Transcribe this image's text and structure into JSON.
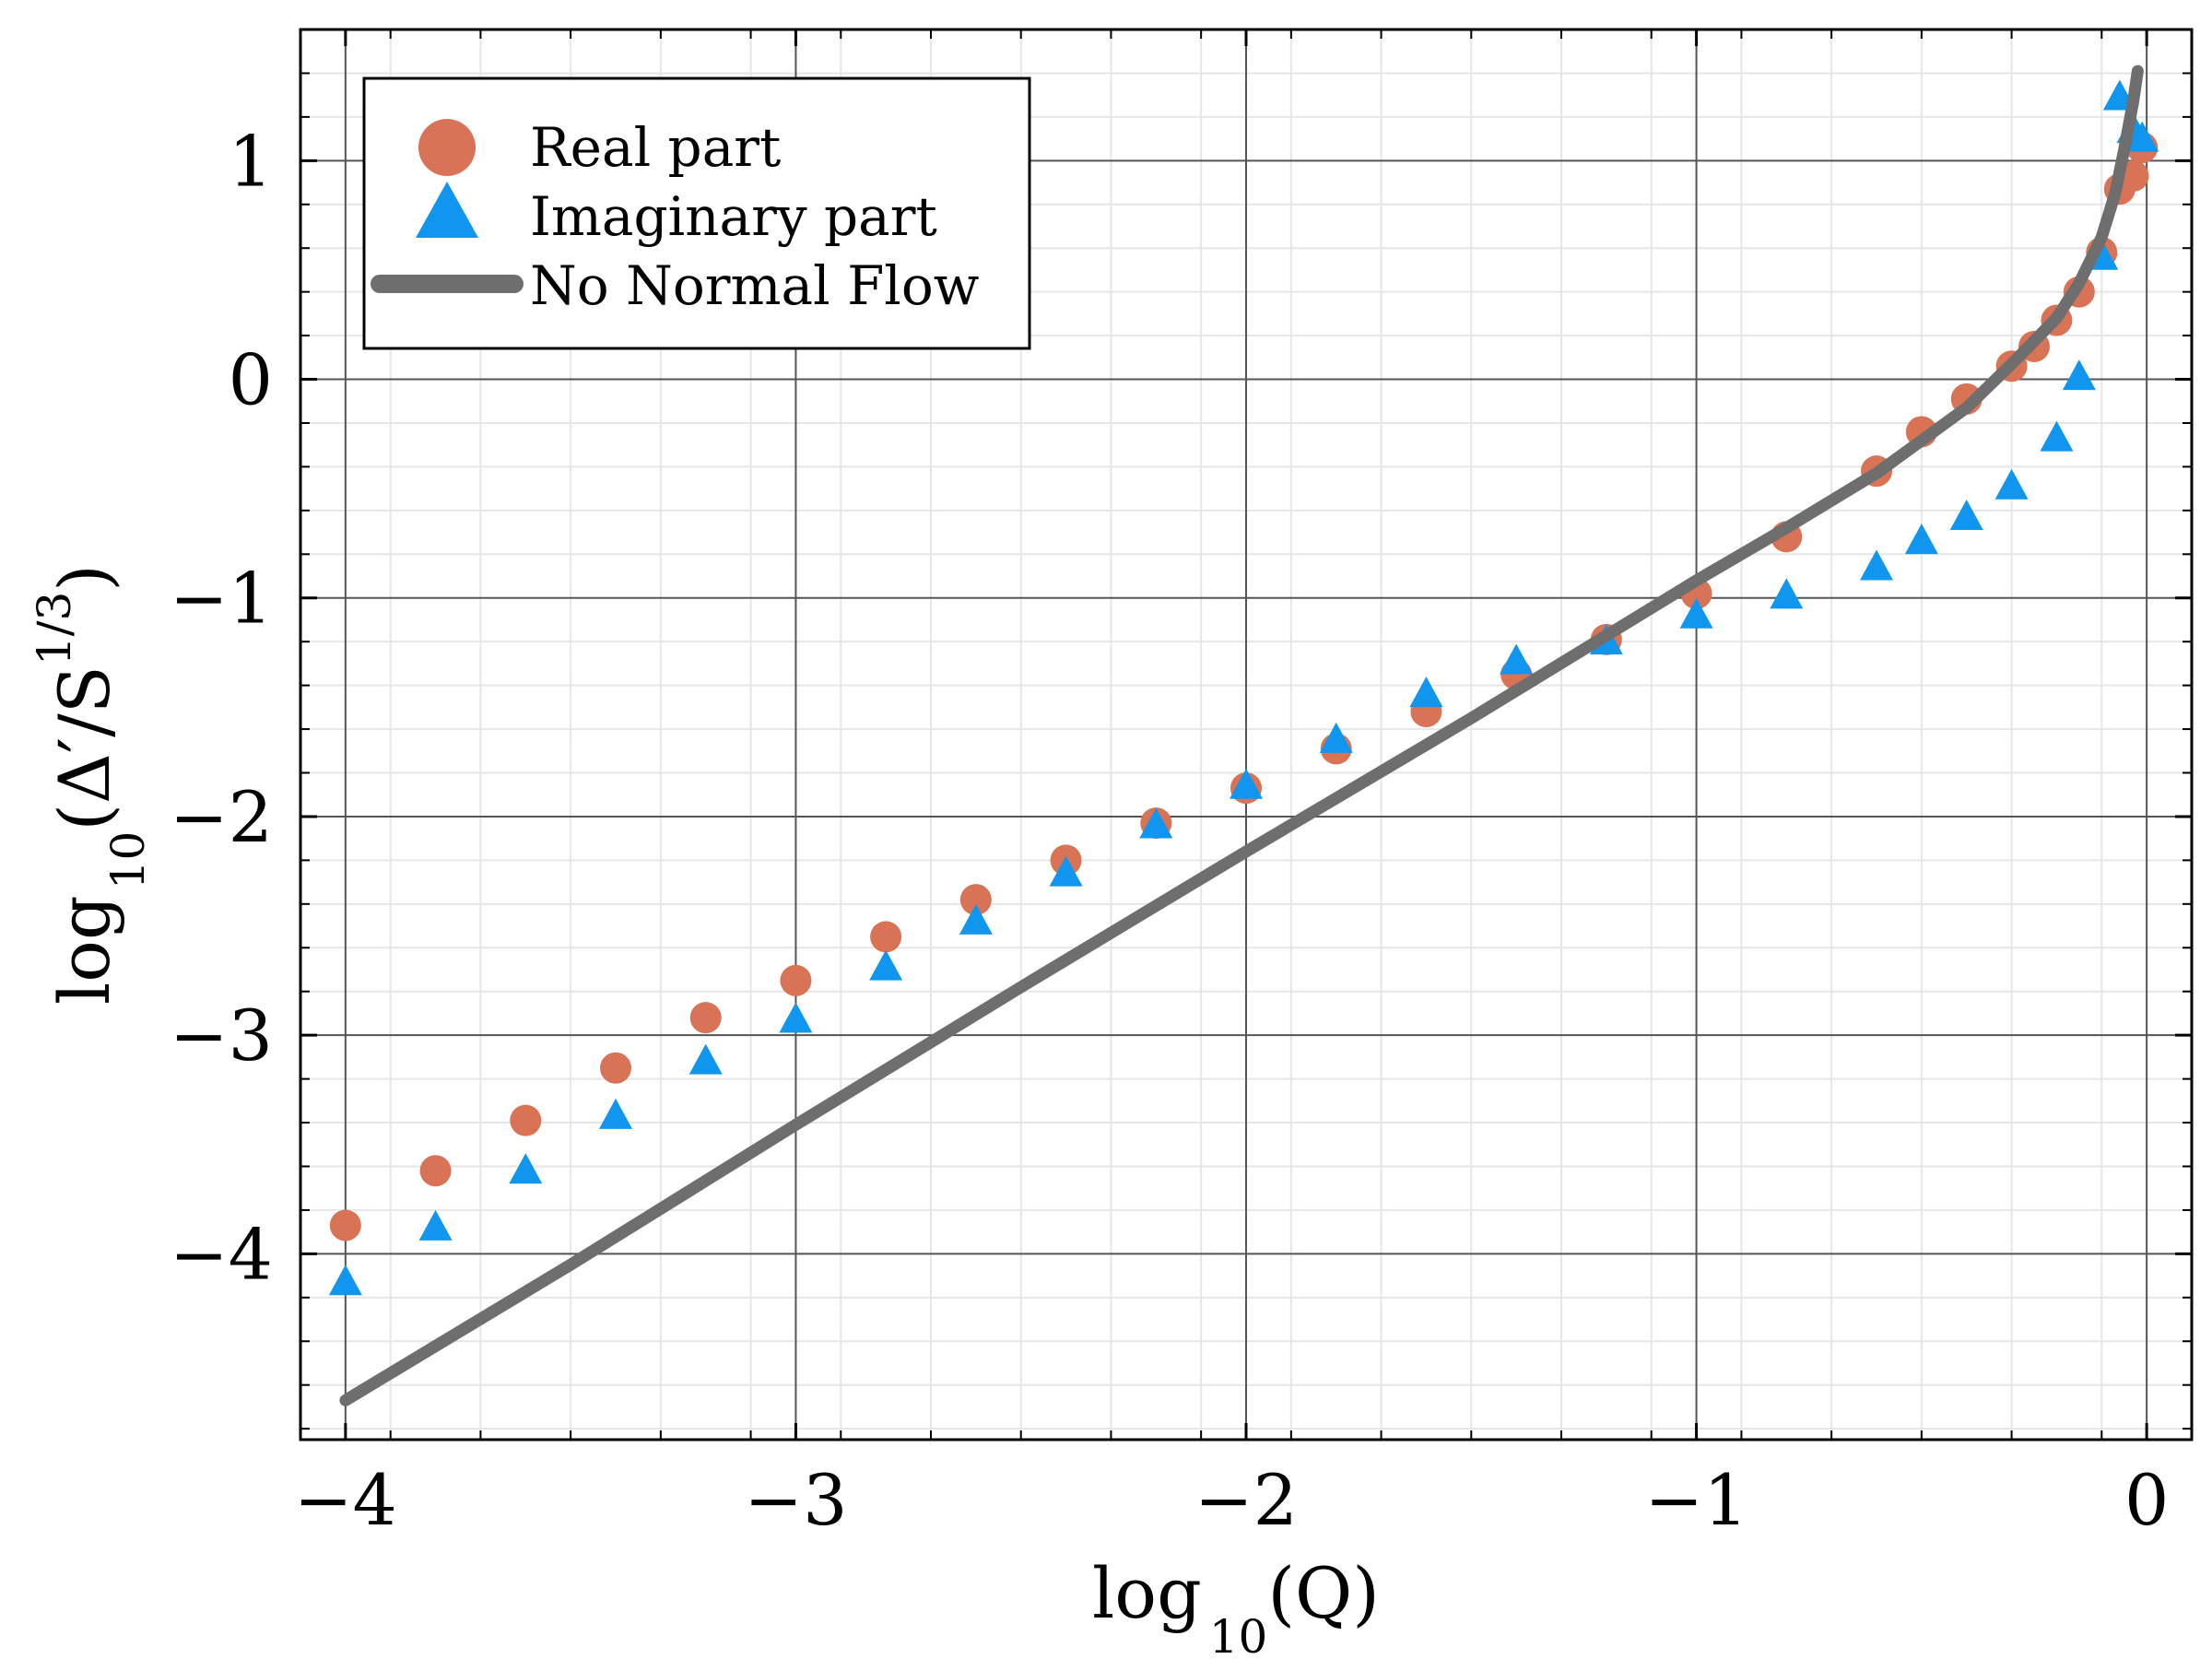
{
  "chart_data": {
    "type": "scatter",
    "xlim": [
      -4.1,
      0.1
    ],
    "ylim": [
      -4.85,
      1.6
    ],
    "x_ticks": [
      -4,
      -3,
      -2,
      -1,
      0
    ],
    "x_tick_labels": [
      "−4",
      "−3",
      "−2",
      "−1",
      "0"
    ],
    "y_ticks": [
      -4,
      -3,
      -2,
      -1,
      0,
      1
    ],
    "y_tick_labels": [
      "−4",
      "−3",
      "−2",
      "−1",
      "0",
      "1"
    ],
    "xlabel": {
      "prefix": "log",
      "sub": "10",
      "suffix": "(Q)"
    },
    "ylabel": {
      "prefix": "log",
      "sub": "10",
      "suffix": "(Δ′/S",
      "sup": "1/3",
      "close": ")"
    },
    "grid": true,
    "minor_grid": true,
    "legend_position": "top-left",
    "colors": {
      "real": "#D97356",
      "imag": "#1196F0",
      "flow": "#6E6E6E"
    },
    "series": [
      {
        "name": "Real part",
        "marker": "circle",
        "x": [
          -4.0,
          -3.8,
          -3.6,
          -3.4,
          -3.2,
          -3.0,
          -2.8,
          -2.6,
          -2.4,
          -2.2,
          -2.0,
          -1.8,
          -1.6,
          -1.4,
          -1.2,
          -1.0,
          -0.8,
          -0.6,
          -0.5,
          -0.4,
          -0.3,
          -0.25,
          -0.2,
          -0.15,
          -0.1,
          -0.06,
          -0.03,
          -0.01
        ],
        "y": [
          -3.87,
          -3.62,
          -3.39,
          -3.15,
          -2.92,
          -2.75,
          -2.55,
          -2.38,
          -2.2,
          -2.03,
          -1.87,
          -1.69,
          -1.52,
          -1.35,
          -1.19,
          -0.98,
          -0.72,
          -0.42,
          -0.24,
          -0.09,
          0.06,
          0.15,
          0.27,
          0.4,
          0.58,
          0.87,
          0.93,
          1.06
        ]
      },
      {
        "name": "Imaginary part",
        "marker": "triangle",
        "x": [
          -4.0,
          -3.8,
          -3.6,
          -3.4,
          -3.2,
          -3.0,
          -2.8,
          -2.6,
          -2.4,
          -2.2,
          -2.0,
          -1.8,
          -1.6,
          -1.4,
          -1.2,
          -1.0,
          -0.8,
          -0.6,
          -0.5,
          -0.4,
          -0.3,
          -0.2,
          -0.15,
          -0.1,
          -0.06,
          -0.03,
          -0.01
        ],
        "y": [
          -4.13,
          -3.88,
          -3.62,
          -3.37,
          -3.12,
          -2.93,
          -2.69,
          -2.48,
          -2.26,
          -2.04,
          -1.86,
          -1.65,
          -1.44,
          -1.29,
          -1.2,
          -1.08,
          -0.99,
          -0.86,
          -0.74,
          -0.63,
          -0.49,
          -0.27,
          0.01,
          0.56,
          1.29,
          1.14,
          1.1
        ]
      },
      {
        "name": "No Normal Flow",
        "marker": "line",
        "x": [
          -4.0,
          -3.5,
          -3.0,
          -2.5,
          -2.0,
          -1.5,
          -1.0,
          -0.8,
          -0.6,
          -0.4,
          -0.3,
          -0.2,
          -0.15,
          -0.1,
          -0.07,
          -0.05,
          -0.03,
          -0.02
        ],
        "y": [
          -4.67,
          -4.05,
          -3.41,
          -2.78,
          -2.16,
          -1.55,
          -0.92,
          -0.68,
          -0.43,
          -0.13,
          0.07,
          0.28,
          0.44,
          0.65,
          0.85,
          1.05,
          1.27,
          1.41
        ]
      }
    ]
  }
}
